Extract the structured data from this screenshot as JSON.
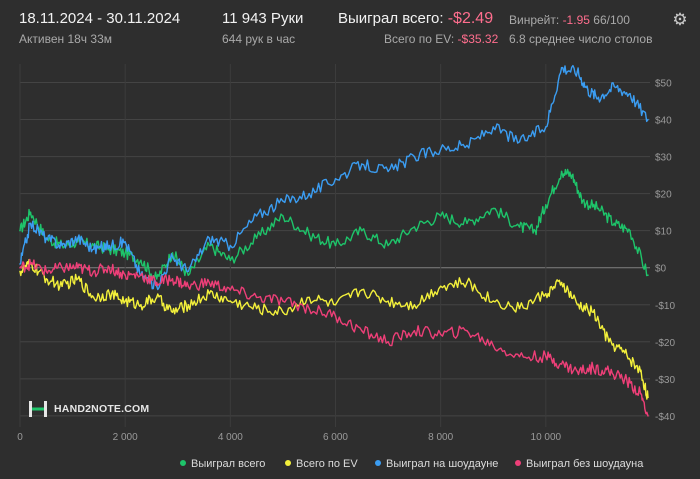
{
  "header": {
    "date_range": "18.11.2024 - 30.11.2024",
    "active_time": "Активен 18ч 33м",
    "hands_count": "11 943 Руки",
    "hands_per_hour": "644 рук в час",
    "won_total_label": "Выиграл всего:",
    "won_total_value": "-$2.49",
    "ev_total_label": "Всего по EV:",
    "ev_total_value": "-$35.32",
    "winrate_label": "Винрейт:",
    "winrate_value": "-1.95",
    "winrate_unit": "66/100",
    "avg_tables": "6.8 среднее число столов"
  },
  "logo": {
    "text": "HAND2NOTE.COM"
  },
  "icons": {
    "settings": "gear-icon",
    "logo": "hand2note-logo-icon"
  },
  "colors": {
    "background": "#2e2e2e",
    "won": "#1ec46a",
    "ev": "#f3f03b",
    "showdown": "#3b9df2",
    "non_showdown": "#ee3f78",
    "negative_text": "#ff6e8e"
  },
  "legend": [
    {
      "label": "Выиграл всего",
      "color": "#1ec46a"
    },
    {
      "label": "Всего по EV",
      "color": "#f3f03b"
    },
    {
      "label": "Выиграл на шоудауне",
      "color": "#3b9df2"
    },
    {
      "label": "Выиграл без шоудауна",
      "color": "#ee3f78"
    }
  ],
  "chart_data": {
    "type": "line",
    "xlim": [
      0,
      11943
    ],
    "ylim": [
      -43,
      55
    ],
    "x_ticks": [
      0,
      2000,
      4000,
      6000,
      8000,
      10000
    ],
    "x_tick_labels": [
      "0",
      "2 000",
      "4 000",
      "6 000",
      "8 000",
      "10 000"
    ],
    "y_ticks": [
      -40,
      -30,
      -20,
      -10,
      0,
      10,
      20,
      30,
      40,
      50
    ],
    "y_tick_labels": [
      "-$40",
      "-$30",
      "-$20",
      "-$10",
      "$0",
      "$10",
      "$20",
      "$30",
      "$40",
      "$50"
    ],
    "grid": true,
    "series": [
      {
        "name": "Выиграл всего",
        "color": "#1ec46a",
        "x": [
          0,
          200,
          500,
          800,
          1100,
          1400,
          1700,
          2000,
          2300,
          2600,
          2900,
          3200,
          3600,
          4000,
          4500,
          5000,
          5500,
          6000,
          6500,
          7000,
          7500,
          8000,
          8500,
          9000,
          9500,
          9800,
          10000,
          10300,
          10500,
          10700,
          11000,
          11300,
          11600,
          11943
        ],
        "values": [
          10,
          15,
          8,
          6,
          7,
          6,
          5,
          4,
          2,
          -3,
          4,
          -2,
          6,
          2,
          8,
          14,
          9,
          6,
          10,
          6,
          11,
          14,
          12,
          16,
          11,
          10,
          17,
          26,
          25,
          18,
          16,
          12,
          10,
          -2
        ]
      },
      {
        "name": "Всего по EV",
        "color": "#f3f03b",
        "x": [
          0,
          200,
          500,
          800,
          1100,
          1400,
          1700,
          2000,
          2300,
          2600,
          2900,
          3200,
          3600,
          4000,
          4500,
          5000,
          5500,
          6000,
          6500,
          7000,
          7500,
          8000,
          8500,
          9000,
          9500,
          10000,
          10300,
          10600,
          10900,
          11200,
          11500,
          11800,
          11943
        ],
        "values": [
          -1,
          1,
          -3,
          -5,
          -3,
          -8,
          -7,
          -9,
          -10,
          -8,
          -12,
          -10,
          -7,
          -9,
          -11,
          -12,
          -8,
          -10,
          -6,
          -9,
          -10,
          -5,
          -4,
          -9,
          -11,
          -7,
          -4,
          -10,
          -12,
          -20,
          -23,
          -28,
          -35
        ]
      },
      {
        "name": "Выиграл на шоудауне",
        "color": "#3b9df2",
        "x": [
          0,
          200,
          500,
          800,
          1100,
          1400,
          1700,
          2000,
          2300,
          2600,
          2900,
          3200,
          3600,
          4000,
          4500,
          5000,
          5500,
          6000,
          6500,
          7000,
          7500,
          8000,
          8500,
          9000,
          9500,
          10000,
          10300,
          10600,
          10800,
          11000,
          11300,
          11600,
          11943
        ],
        "values": [
          1,
          12,
          8,
          6,
          8,
          5,
          6,
          7,
          -2,
          -5,
          3,
          -1,
          8,
          6,
          14,
          18,
          20,
          24,
          28,
          26,
          30,
          32,
          33,
          38,
          34,
          38,
          54,
          53,
          48,
          46,
          49,
          47,
          40
        ]
      },
      {
        "name": "Выиграл без шоудауна",
        "color": "#ee3f78",
        "x": [
          0,
          200,
          500,
          800,
          1100,
          1400,
          1700,
          2000,
          2300,
          2600,
          2900,
          3200,
          3600,
          4000,
          4500,
          5000,
          5500,
          6000,
          6500,
          7000,
          7500,
          8000,
          8500,
          9000,
          9500,
          10000,
          10300,
          10600,
          10900,
          11200,
          11500,
          11800,
          11943
        ],
        "values": [
          0,
          1,
          -1,
          0,
          0,
          -1,
          0,
          -2,
          -2,
          -4,
          -3,
          -5,
          -4,
          -6,
          -8,
          -9,
          -11,
          -13,
          -17,
          -20,
          -17,
          -18,
          -17,
          -21,
          -24,
          -24,
          -26,
          -28,
          -27,
          -28,
          -30,
          -34,
          -40
        ]
      }
    ]
  }
}
